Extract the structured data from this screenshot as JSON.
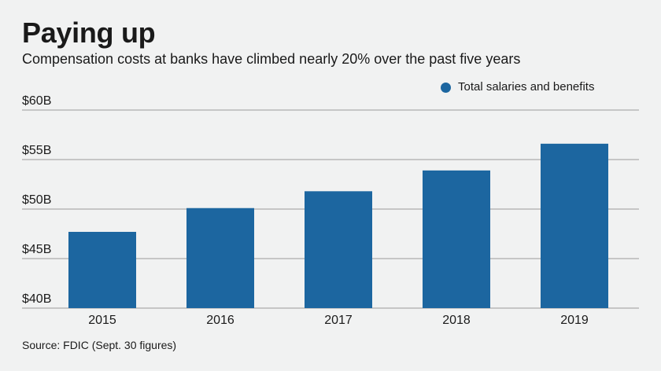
{
  "chart_data": {
    "type": "bar",
    "title": "Paying up",
    "subtitle": "Compensation costs at banks have climbed nearly 20% over the past five years",
    "categories": [
      "2015",
      "2016",
      "2017",
      "2018",
      "2019"
    ],
    "series": [
      {
        "name": "Total salaries and benefits",
        "values": [
          47.7,
          50.1,
          51.8,
          53.9,
          56.6
        ]
      }
    ],
    "yticks": [
      {
        "value": 40,
        "label": "$40B"
      },
      {
        "value": 45,
        "label": "$45B"
      },
      {
        "value": 50,
        "label": "$50B"
      },
      {
        "value": 55,
        "label": "$55B"
      },
      {
        "value": 60,
        "label": "$60B"
      }
    ],
    "ylim": [
      40,
      60
    ],
    "xlabel": "",
    "ylabel": "",
    "grid": true,
    "legend_position": "top-right",
    "colors": {
      "bar": "#1c66a0",
      "grid": "#9a9a9a",
      "background": "#f1f2f2"
    }
  },
  "source": "Source: FDIC (Sept. 30 figures)"
}
